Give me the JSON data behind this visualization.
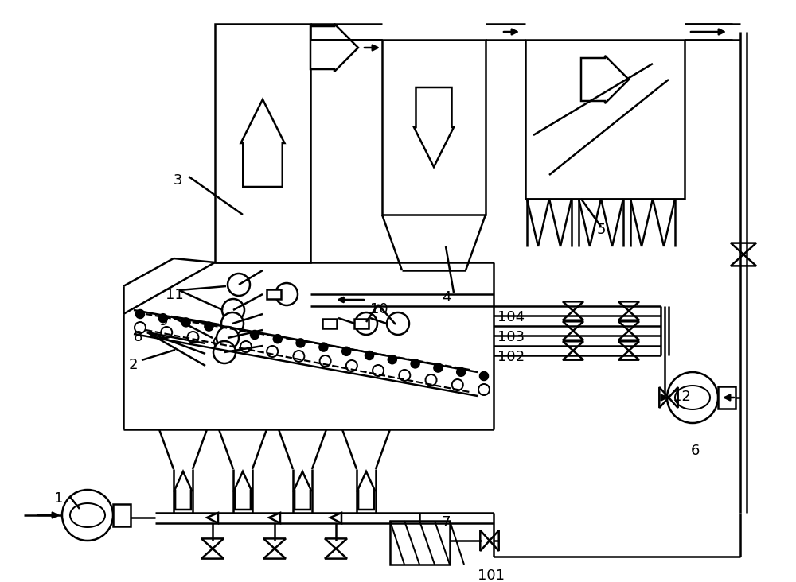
{
  "bg": "#ffffff",
  "lc": "#000000",
  "lw": 1.8
}
